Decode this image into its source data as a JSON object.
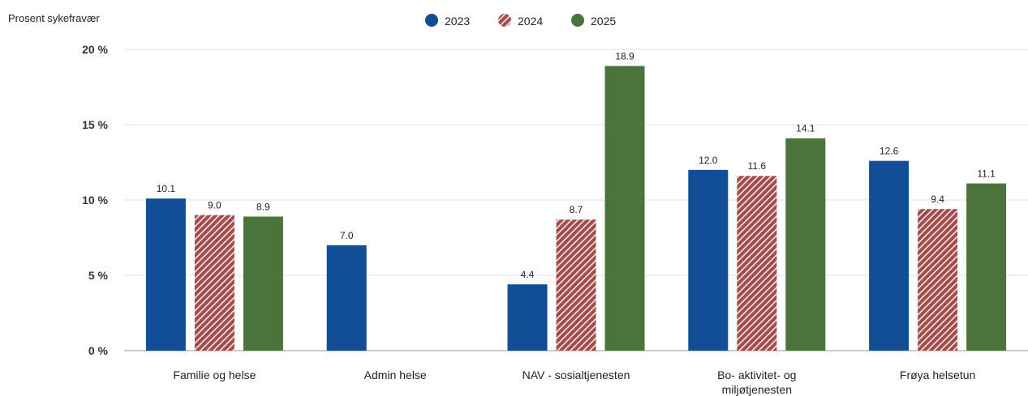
{
  "chart_data": {
    "type": "bar",
    "ylabel": "Prosent sykefravær",
    "ylim": [
      0,
      20
    ],
    "yticks": [
      "0 %",
      "5 %",
      "10 %",
      "15 %",
      "20 %"
    ],
    "grid": true,
    "legend_position": "top-center",
    "categories": [
      [
        "Familie og helse"
      ],
      [
        "Admin helse"
      ],
      [
        "NAV - sosialtjenesten"
      ],
      [
        "Bo- aktivitet- og",
        "miljøtjenesten"
      ],
      [
        "Frøya helsetun"
      ]
    ],
    "series": [
      {
        "name": "2023",
        "color": "#124e96",
        "pattern": "solid",
        "values": [
          10.1,
          7.0,
          4.4,
          12.0,
          12.6
        ]
      },
      {
        "name": "2024",
        "color": "#a24d4b",
        "pattern": "hatched",
        "values": [
          9.0,
          null,
          8.7,
          11.6,
          9.4
        ]
      },
      {
        "name": "2025",
        "color": "#4a743a",
        "pattern": "solid",
        "values": [
          8.9,
          null,
          18.9,
          14.1,
          11.1
        ]
      }
    ]
  }
}
